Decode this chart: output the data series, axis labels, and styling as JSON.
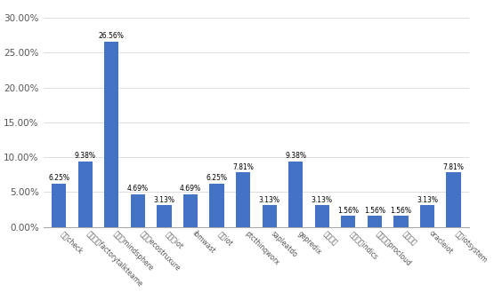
{
  "categories": [
    "摩卡check",
    "罗克韦尔factorytalkteame",
    "西门子mindsphere",
    "施耶德ecostruxure",
    "英特尔iot",
    "ibmwast",
    "华为iot",
    "ptcthinqworx",
    "sapleatdo",
    "gepredix",
    "树根互联",
    "航天科工indics",
    "菲尼克斯procloud",
    "美云智数",
    "oracleiot",
    "慧联iotsystem"
  ],
  "values": [
    6.25,
    9.38,
    26.56,
    4.69,
    3.13,
    4.69,
    6.25,
    7.81,
    3.13,
    9.38,
    3.13,
    1.56,
    1.56,
    1.56,
    3.13,
    7.81
  ],
  "bar_color": "#4472C4",
  "ylim": [
    0,
    32
  ],
  "yticks": [
    0,
    5,
    10,
    15,
    20,
    25,
    30
  ],
  "ytick_labels": [
    "0.00%",
    "5.00%",
    "10.00%",
    "15.00%",
    "20.00%",
    "25.00%",
    "30.00%"
  ],
  "value_labels": [
    "6.25%",
    "9.38%",
    "26.56%",
    "4.69%",
    "3.13%",
    "4.69%",
    "6.25%",
    "7.81%",
    "3.13%",
    "9.38%",
    "3.13%",
    "1.56%",
    "1.56%",
    "1.56%",
    "3.13%",
    "7.81%"
  ],
  "bg_color": "#ffffff",
  "grid_color": "#d0d0d0",
  "label_fontsize": 5.5,
  "value_fontsize": 5.5,
  "ytick_fontsize": 7.5,
  "bar_width": 0.55
}
